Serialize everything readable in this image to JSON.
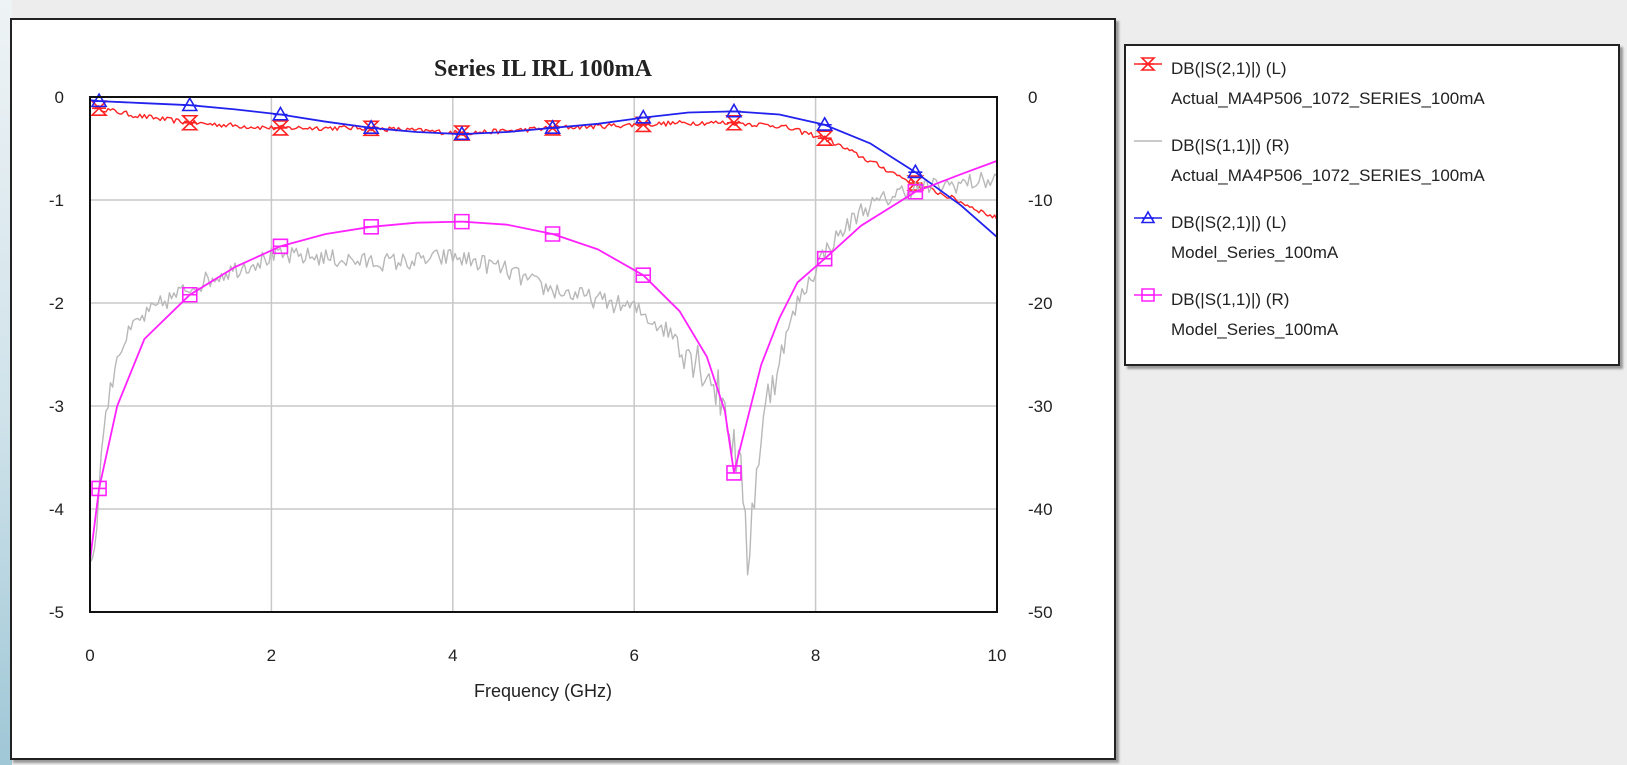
{
  "chart_data": {
    "type": "line",
    "title": "Series IL IRL 100mA",
    "xlabel": "Frequency (GHz)",
    "xlim": [
      0,
      10
    ],
    "xticks": [
      0,
      2,
      4,
      6,
      8,
      10
    ],
    "ylim_left": [
      -5,
      0
    ],
    "yticks_left": [
      0,
      -1,
      -2,
      -3,
      -4,
      -5
    ],
    "ylim_right": [
      -50,
      0
    ],
    "yticks_right": [
      0,
      -10,
      -20,
      -30,
      -40,
      -50
    ],
    "grid": true,
    "legend_position": "right",
    "series": [
      {
        "name": "DB(|S(2,1)|) (L)",
        "source": "Actual_MA4P506_1072_SERIES_100mA",
        "axis": "left",
        "color": "#ff2222",
        "marker": "hourglass",
        "noisy": true,
        "x": [
          0.05,
          0.5,
          1.1,
          2.0,
          3.0,
          3.5,
          4.1,
          4.6,
          5.1,
          6.0,
          6.6,
          7.1,
          7.6,
          8.1,
          8.5,
          9.0,
          9.5,
          10.0
        ],
        "y": [
          -0.1,
          -0.18,
          -0.25,
          -0.3,
          -0.3,
          -0.32,
          -0.35,
          -0.33,
          -0.3,
          -0.27,
          -0.25,
          -0.25,
          -0.28,
          -0.4,
          -0.58,
          -0.8,
          -0.98,
          -1.18
        ]
      },
      {
        "name": "DB(|S(1,1)|) (R)",
        "source": "Actual_MA4P506_1072_SERIES_100mA",
        "axis": "right",
        "color": "#b8b8b8",
        "marker": "none",
        "noisy": true,
        "x": [
          0.0,
          0.05,
          0.15,
          0.3,
          0.5,
          0.8,
          1.1,
          1.5,
          2.0,
          2.5,
          3.0,
          3.5,
          4.0,
          4.5,
          5.0,
          5.5,
          6.0,
          6.5,
          6.8,
          7.0,
          7.2,
          7.25,
          7.35,
          7.5,
          7.8,
          8.1,
          8.5,
          9.0,
          9.5,
          10.0
        ],
        "y": [
          -45,
          -44,
          -32,
          -25,
          -22,
          -20,
          -18.5,
          -17,
          -15.5,
          -15.5,
          -16,
          -16,
          -15.5,
          -16.5,
          -18.5,
          -19.5,
          -20.5,
          -23.5,
          -26.5,
          -30,
          -38,
          -45,
          -36,
          -28,
          -20,
          -15,
          -11,
          -9,
          -8.5,
          -8
        ]
      },
      {
        "name": "DB(|S(2,1)|) (L)",
        "source": "Model_Series_100mA",
        "axis": "left",
        "color": "#2222ee",
        "marker": "triangle",
        "noisy": false,
        "x": [
          0.0,
          0.1,
          0.6,
          1.1,
          1.6,
          2.1,
          2.6,
          3.1,
          3.6,
          4.1,
          4.6,
          5.1,
          5.6,
          6.1,
          6.6,
          7.1,
          7.6,
          8.1,
          8.6,
          9.1,
          9.6,
          10.0
        ],
        "y": [
          -0.03,
          -0.04,
          -0.06,
          -0.08,
          -0.12,
          -0.17,
          -0.24,
          -0.3,
          -0.34,
          -0.36,
          -0.34,
          -0.3,
          -0.26,
          -0.2,
          -0.15,
          -0.14,
          -0.17,
          -0.27,
          -0.45,
          -0.73,
          -1.05,
          -1.36
        ]
      },
      {
        "name": "DB(|S(1,1)|) (R)",
        "source": "Model_Series_100mA",
        "axis": "right",
        "color": "#ff22ff",
        "marker": "square",
        "noisy": false,
        "x": [
          0.0,
          0.1,
          0.3,
          0.6,
          1.1,
          1.6,
          2.1,
          2.6,
          3.1,
          3.6,
          4.1,
          4.6,
          5.1,
          5.6,
          6.1,
          6.5,
          6.8,
          7.0,
          7.1,
          7.2,
          7.4,
          7.6,
          7.8,
          8.1,
          8.5,
          9.1,
          9.6,
          10.0
        ],
        "y": [
          -45,
          -38,
          -30,
          -23.5,
          -19.2,
          -16.5,
          -14.5,
          -13.3,
          -12.6,
          -12.2,
          -12.1,
          -12.4,
          -13.3,
          -14.8,
          -17.3,
          -20.8,
          -25.2,
          -30.5,
          -36.5,
          -33,
          -26,
          -21.5,
          -18,
          -15.7,
          -12.5,
          -9.2,
          -7.5,
          -6.2
        ]
      }
    ]
  }
}
